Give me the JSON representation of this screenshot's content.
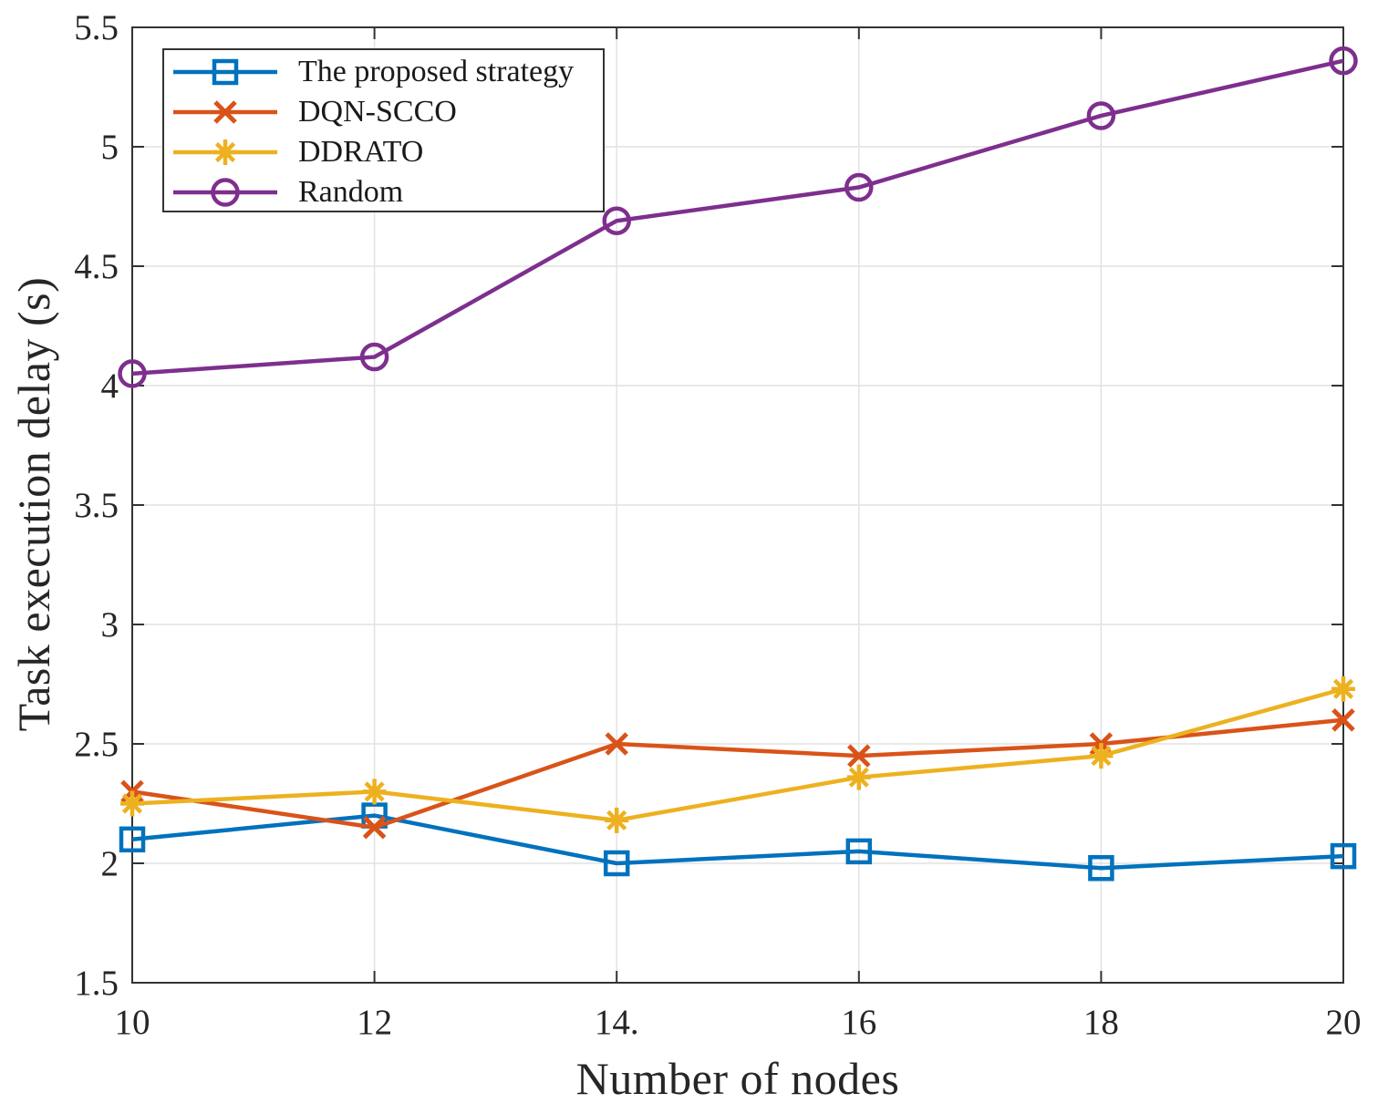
{
  "chart_data": {
    "type": "line",
    "x": [
      10,
      12,
      14,
      16,
      18,
      20
    ],
    "xticklabels": [
      "10",
      "12",
      "14.",
      "16",
      "18",
      "20"
    ],
    "yticks": [
      1.5,
      2,
      2.5,
      3,
      3.5,
      4,
      4.5,
      5,
      5.5
    ],
    "yticklabels": [
      "1.5",
      "2",
      "2.5",
      "3",
      "3.5",
      "4",
      "4.5",
      "5",
      "5.5"
    ],
    "xlabel": "Number of nodes",
    "ylabel": "Task execution delay (s)",
    "xlim": [
      10,
      20
    ],
    "ylim": [
      1.5,
      5.5
    ],
    "grid": true,
    "legend_position": "northwest",
    "series": [
      {
        "name": "The proposed strategy",
        "color": "#0072BD",
        "marker": "square",
        "values": [
          2.1,
          2.2,
          2.0,
          2.05,
          1.98,
          2.03
        ]
      },
      {
        "name": "DQN-SCCO",
        "color": "#D95319",
        "marker": "x",
        "values": [
          2.3,
          2.15,
          2.5,
          2.45,
          2.5,
          2.6
        ]
      },
      {
        "name": "DDRATO",
        "color": "#EDB120",
        "marker": "asterisk",
        "values": [
          2.25,
          2.3,
          2.18,
          2.36,
          2.45,
          2.73
        ]
      },
      {
        "name": "Random",
        "color": "#7E2F8E",
        "marker": "circle",
        "values": [
          4.05,
          4.12,
          4.69,
          4.83,
          5.13,
          5.36
        ]
      }
    ]
  },
  "axes": {
    "frame_color": "#333333",
    "grid_color": "#e2e2e2",
    "tick_color": "#333333",
    "text_color": "#262626"
  }
}
